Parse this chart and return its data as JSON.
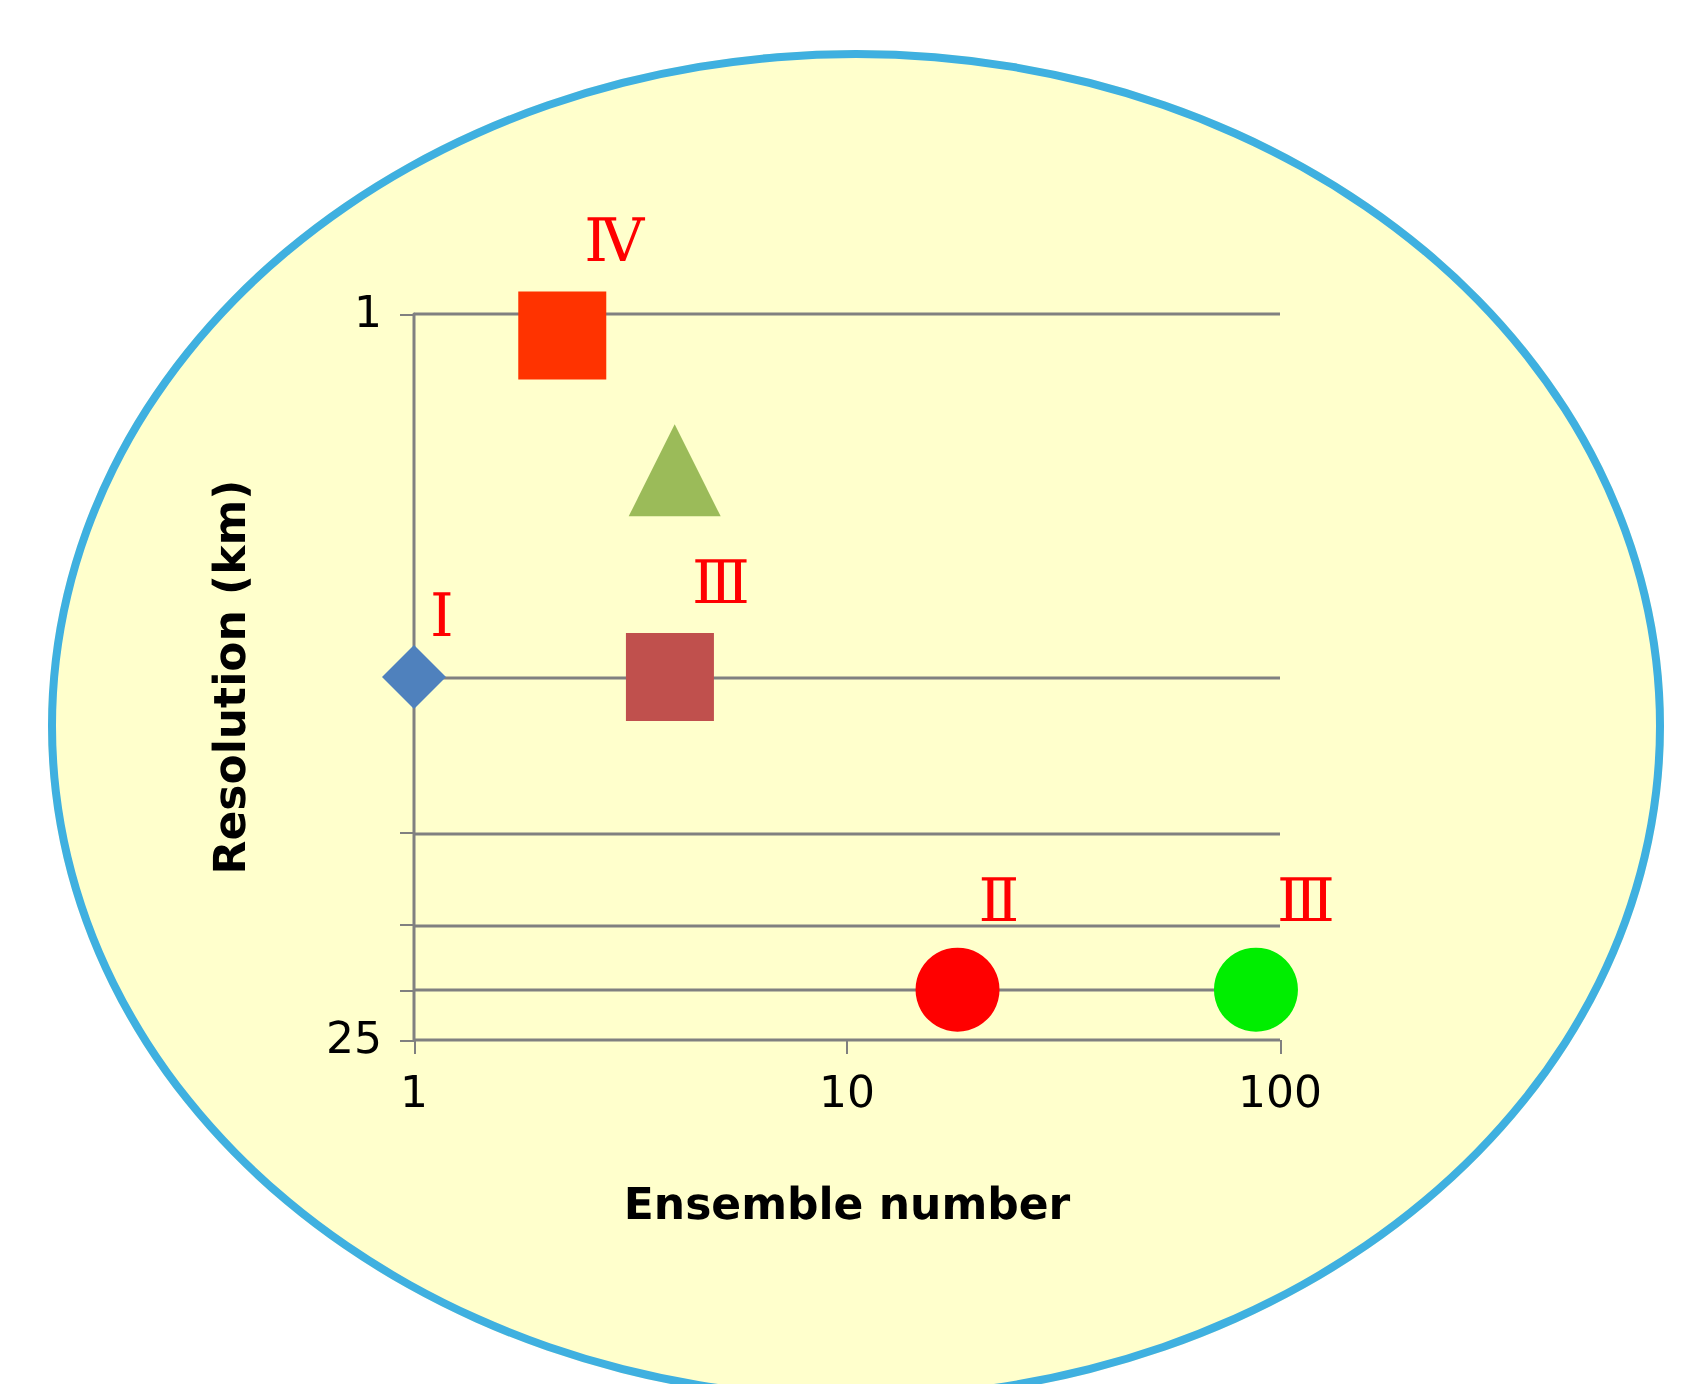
{
  "chart_data": {
    "type": "scatter",
    "xlabel": "Ensemble number",
    "ylabel": "Resolution (km)",
    "log": "xy",
    "xlim": [
      1,
      100
    ],
    "xticks": [
      1,
      10,
      100
    ],
    "ylim": [
      25,
      1
    ],
    "yticks": [
      1,
      {
        "value": 5,
        "label": null
      },
      {
        "value": 10,
        "label": null
      },
      {
        "value": 15,
        "label": null
      },
      {
        "value": 20,
        "label": null
      },
      25
    ],
    "grid": "y",
    "series": [
      {
        "x": [
          1
        ],
        "values": [
          5
        ],
        "color": "#4f81bd",
        "marker": "diamond",
        "value_labels": [
          "Ⅰ"
        ]
      },
      {
        "x": [
          2.2
        ],
        "values": [
          1.1
        ],
        "color": "#ff3300",
        "marker": "square",
        "value_labels": [
          "Ⅳ"
        ]
      },
      {
        "x": [
          4
        ],
        "values": [
          2
        ],
        "color": "#9bbb59",
        "marker": "triangle",
        "value_labels": [
          null
        ]
      },
      {
        "x": [
          3.9
        ],
        "values": [
          5
        ],
        "color": "#c0504d",
        "marker": "square",
        "value_labels": [
          "Ⅲ"
        ]
      },
      {
        "x": [
          18
        ],
        "values": [
          20
        ],
        "color": "#ff0000",
        "marker": "circle",
        "value_labels": [
          "Ⅱ"
        ]
      },
      {
        "x": [
          88
        ],
        "values": [
          20
        ],
        "color": "#00ee00",
        "marker": "circle",
        "value_labels": [
          "Ⅲ"
        ]
      }
    ]
  }
}
